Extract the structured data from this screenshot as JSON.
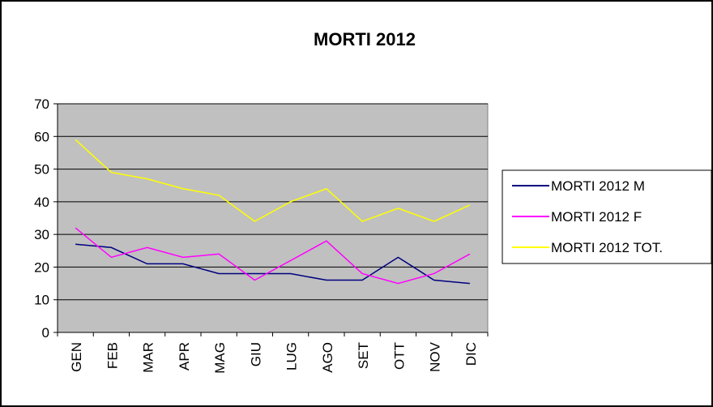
{
  "chart_data": {
    "type": "line",
    "title": "MORTI 2012",
    "categories": [
      "GEN",
      "FEB",
      "MAR",
      "APR",
      "MAG",
      "GIU",
      "LUG",
      "AGO",
      "SET",
      "OTT",
      "NOV",
      "DIC"
    ],
    "series": [
      {
        "name": "MORTI 2012 M",
        "color": "#000080",
        "values": [
          27,
          26,
          21,
          21,
          18,
          18,
          18,
          16,
          16,
          23,
          16,
          15
        ]
      },
      {
        "name": "MORTI 2012 F",
        "color": "#ff00ff",
        "values": [
          32,
          23,
          26,
          23,
          24,
          16,
          22,
          28,
          18,
          15,
          18,
          24
        ]
      },
      {
        "name": "MORTI 2012 TOT.",
        "color": "#ffff00",
        "values": [
          59,
          49,
          47,
          44,
          42,
          34,
          40,
          44,
          34,
          38,
          34,
          39
        ]
      }
    ],
    "ylim": [
      0,
      70
    ],
    "yticks": [
      0,
      10,
      20,
      30,
      40,
      50,
      60,
      70
    ],
    "grid": true,
    "legend": "right"
  }
}
